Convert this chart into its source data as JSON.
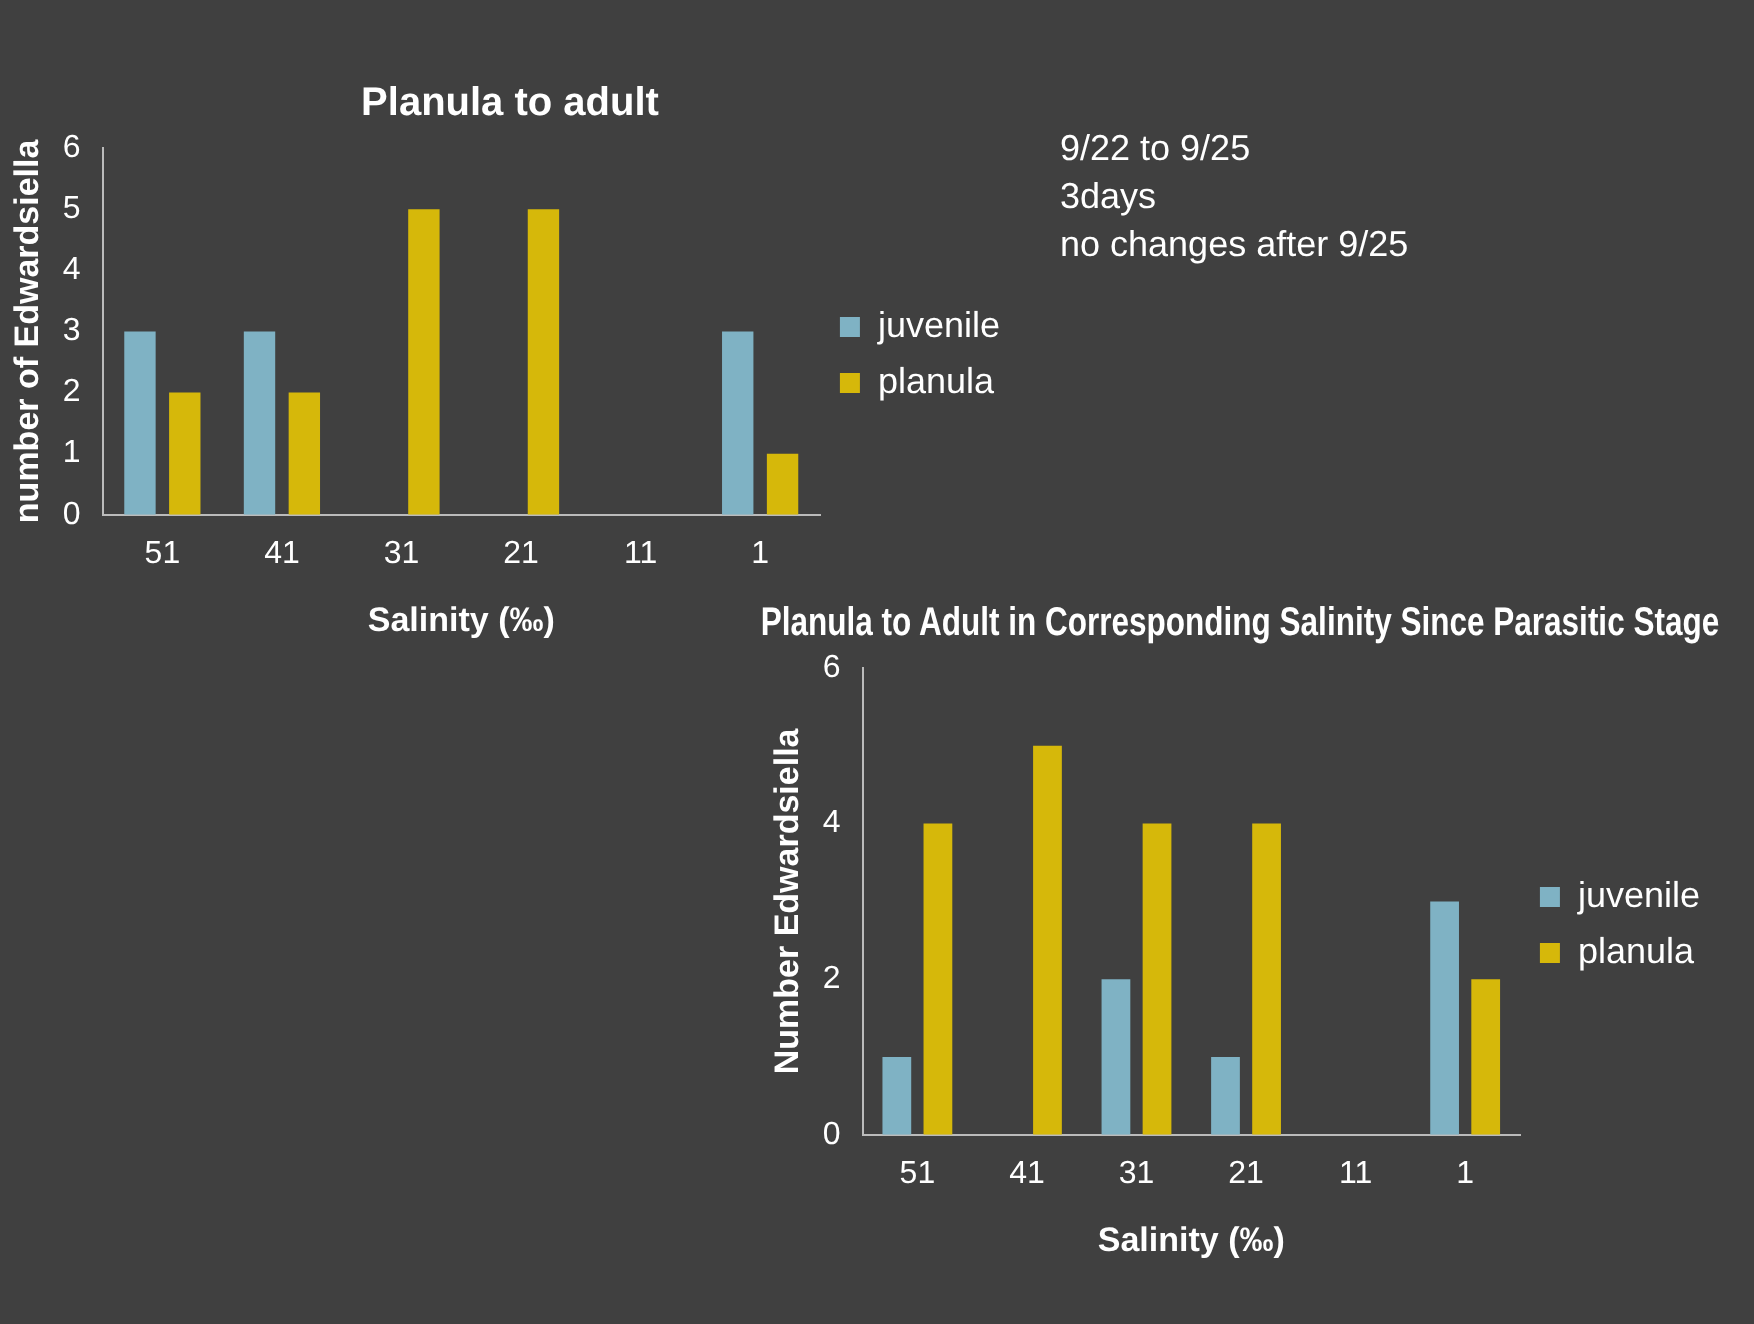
{
  "chart_data": [
    {
      "type": "bar",
      "title": "Planula to adult",
      "xlabel": "Salinity (‰)",
      "ylabel": "number of Edwardsiella",
      "categories": [
        "51",
        "41",
        "31",
        "21",
        "11",
        "1"
      ],
      "series": [
        {
          "name": "juvenile",
          "color": "#7fb2c4",
          "values": [
            3,
            3,
            0,
            0,
            0,
            3
          ]
        },
        {
          "name": "planula",
          "color": "#d6b80a",
          "values": [
            2,
            2,
            5,
            5,
            0,
            1
          ]
        }
      ],
      "ylim": [
        0,
        6
      ],
      "yticks": [
        0,
        1,
        2,
        3,
        4,
        5,
        6
      ],
      "grid": false,
      "legend": "right",
      "annotations": [
        "9/22 to 9/25",
        "3days",
        "no changes after 9/25"
      ]
    },
    {
      "type": "bar",
      "title": "Planula to Adult in Corresponding Salinity Since Parasitic Stage",
      "xlabel": "Salinity (‰)",
      "ylabel": "Number Edwardsiella",
      "categories": [
        "51",
        "41",
        "31",
        "21",
        "11",
        "1"
      ],
      "series": [
        {
          "name": "juvenile",
          "color": "#7fb2c4",
          "values": [
            1,
            0,
            2,
            1,
            0,
            3
          ]
        },
        {
          "name": "planula",
          "color": "#d6b80a",
          "values": [
            4,
            5,
            4,
            4,
            0,
            2
          ]
        }
      ],
      "ylim": [
        0,
        6
      ],
      "yticks": [
        0,
        2,
        4,
        6
      ],
      "grid": false,
      "legend": "right"
    }
  ]
}
